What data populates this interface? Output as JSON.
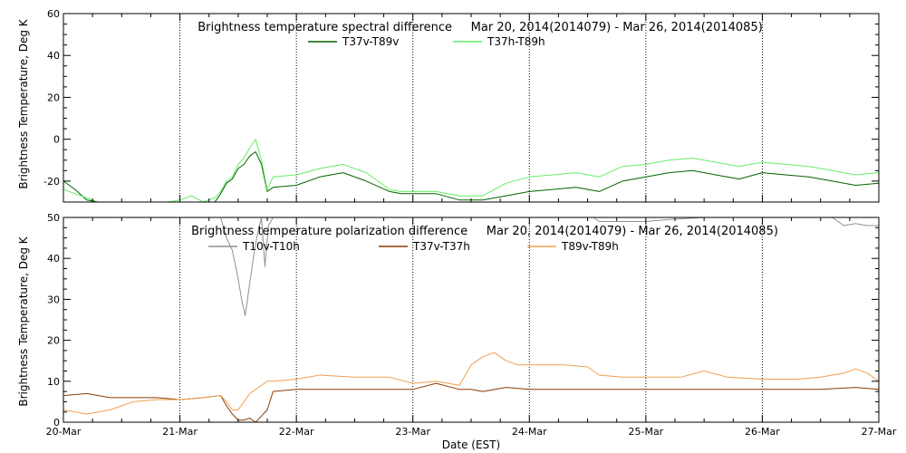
{
  "chart_data": [
    {
      "type": "line",
      "title": "Brightness temperature spectral difference     Mar 20, 2014(2014079) - Mar 26, 2014(2014085)",
      "ylabel": "Brightness Temperature, Deg K",
      "xlabel": "",
      "ylim": [
        -30,
        60
      ],
      "yticks": [
        -20,
        0,
        20,
        40,
        60
      ],
      "yticks_display": [
        "-20",
        "0",
        "20",
        "40",
        "60"
      ],
      "xlim": [
        0,
        7
      ],
      "xticks": [
        0,
        1,
        2,
        3,
        4,
        5,
        6,
        7
      ],
      "x_tick_labels": [
        "",
        "",
        "",
        "",
        "",
        "",
        "",
        ""
      ],
      "grid": "vertical dotted at each day",
      "legend": "top-center",
      "series": [
        {
          "name": "T37v-T89v",
          "color": "#006400",
          "x": [
            0,
            0.1,
            0.2,
            0.3,
            0.4,
            0.5,
            0.6,
            0.7,
            0.8,
            0.9,
            1.0,
            1.1,
            1.2,
            1.3,
            1.35,
            1.4,
            1.45,
            1.5,
            1.55,
            1.6,
            1.65,
            1.7,
            1.75,
            1.8,
            2.0,
            2.2,
            2.4,
            2.6,
            2.8,
            2.9,
            3.0,
            3.2,
            3.4,
            3.6,
            3.8,
            4.0,
            4.2,
            4.4,
            4.6,
            4.8,
            5.0,
            5.2,
            5.4,
            5.6,
            5.8,
            6.0,
            6.2,
            6.4,
            6.6,
            6.8,
            7.0
          ],
          "values": [
            -20,
            -24,
            -29,
            -30,
            -30,
            -30,
            -30,
            -30,
            -30,
            -30,
            -30,
            -30,
            -30,
            -30,
            -26,
            -21,
            -19,
            -14,
            -12,
            -8,
            -6,
            -12,
            -25,
            -23,
            -22,
            -18,
            -16,
            -20,
            -25,
            -26,
            -26,
            -26,
            -29,
            -29,
            -27,
            -25,
            -24,
            -23,
            -25,
            -20,
            -18,
            -16,
            -15,
            -17,
            -19,
            -16,
            -17,
            -18,
            -20,
            -22,
            -21
          ]
        },
        {
          "name": "T37h-T89h",
          "color": "#66ee66",
          "x": [
            0,
            0.1,
            0.2,
            0.3,
            0.4,
            0.5,
            0.6,
            0.7,
            0.8,
            0.9,
            1.0,
            1.1,
            1.2,
            1.3,
            1.35,
            1.4,
            1.45,
            1.5,
            1.55,
            1.6,
            1.65,
            1.7,
            1.75,
            1.8,
            2.0,
            2.2,
            2.4,
            2.6,
            2.8,
            2.9,
            3.0,
            3.2,
            3.4,
            3.6,
            3.8,
            4.0,
            4.2,
            4.4,
            4.6,
            4.8,
            5.0,
            5.2,
            5.4,
            5.6,
            5.8,
            6.0,
            6.2,
            6.4,
            6.6,
            6.8,
            7.0
          ],
          "values": [
            -24,
            -26,
            -28,
            -30,
            -30,
            -30,
            -30,
            -30,
            -30,
            -30,
            -29,
            -27,
            -30,
            -28,
            -25,
            -20,
            -18,
            -12,
            -9,
            -4,
            0,
            -10,
            -24,
            -18,
            -17,
            -14,
            -12,
            -16,
            -24,
            -25,
            -25,
            -25,
            -27,
            -27,
            -21,
            -18,
            -17,
            -16,
            -18,
            -13,
            -12,
            -10,
            -9,
            -11,
            -13,
            -11,
            -12,
            -13,
            -15,
            -17,
            -16
          ]
        }
      ]
    },
    {
      "type": "line",
      "title": "Brightness temperature polarization difference     Mar 20, 2014(2014079) - Mar 26, 2014(2014085)",
      "ylabel": "Brightness Temperature, Deg K",
      "xlabel": "Date (EST)",
      "ylim": [
        0,
        50
      ],
      "yticks": [
        0,
        10,
        20,
        30,
        40,
        50
      ],
      "yticks_display": [
        "0",
        "10",
        "20",
        "30",
        "40",
        "50"
      ],
      "xlim": [
        0,
        7
      ],
      "xticks": [
        0,
        1,
        2,
        3,
        4,
        5,
        6,
        7
      ],
      "x_tick_labels": [
        "20-Mar",
        "21-Mar",
        "22-Mar",
        "23-Mar",
        "24-Mar",
        "25-Mar",
        "26-Mar",
        "27-Mar"
      ],
      "grid": "vertical dotted at each day",
      "legend": "top-center",
      "series": [
        {
          "name": "T10v-T10h",
          "color": "#909090",
          "x": [
            1.35,
            1.4,
            1.45,
            1.5,
            1.53,
            1.56,
            1.6,
            1.63,
            1.66,
            1.7,
            1.73,
            1.76,
            1.8,
            4.55,
            4.6,
            4.8,
            5.0,
            5.2,
            5.5,
            5.8,
            6.0,
            6.3,
            6.6,
            6.7,
            6.8,
            6.9,
            7.0
          ],
          "values": [
            50,
            45,
            42,
            35,
            30,
            26,
            34,
            40,
            45,
            50,
            38,
            48,
            50,
            50,
            49,
            49,
            49,
            49.5,
            50,
            50,
            50,
            50,
            50,
            48,
            48.5,
            48,
            48
          ]
        },
        {
          "name": "T37v-T37h",
          "color": "#8b3a00",
          "x": [
            0,
            0.2,
            0.4,
            0.6,
            0.8,
            1.0,
            1.2,
            1.35,
            1.4,
            1.45,
            1.5,
            1.55,
            1.6,
            1.65,
            1.7,
            1.75,
            1.8,
            2.0,
            2.5,
            3.0,
            3.2,
            3.4,
            3.5,
            3.6,
            3.8,
            4.0,
            4.5,
            5.0,
            5.5,
            6.0,
            6.5,
            6.8,
            7.0
          ],
          "values": [
            6.5,
            7,
            6,
            6,
            6,
            5.5,
            6,
            6.5,
            4,
            2,
            0.5,
            0.5,
            1,
            0,
            1.5,
            3,
            7.5,
            8,
            8,
            8,
            9.5,
            8,
            8,
            7.5,
            8.5,
            8,
            8,
            8,
            8,
            8,
            8,
            8.5,
            8
          ]
        },
        {
          "name": "T89v-T89h",
          "color": "#f0a050",
          "x": [
            0,
            0.2,
            0.4,
            0.6,
            0.8,
            1.0,
            1.2,
            1.35,
            1.4,
            1.45,
            1.5,
            1.55,
            1.6,
            1.7,
            1.75,
            1.8,
            2.0,
            2.2,
            2.5,
            2.8,
            3.0,
            3.2,
            3.4,
            3.5,
            3.6,
            3.7,
            3.8,
            3.9,
            4.0,
            4.3,
            4.5,
            4.6,
            4.8,
            5.0,
            5.3,
            5.5,
            5.7,
            6.0,
            6.3,
            6.5,
            6.7,
            6.8,
            6.9,
            7.0
          ],
          "values": [
            3,
            2,
            3,
            5,
            5.5,
            5.5,
            6,
            6.5,
            5,
            3,
            3,
            5,
            7,
            9,
            10,
            10,
            10.5,
            11.5,
            11,
            11,
            9.5,
            10,
            9,
            14,
            16,
            17,
            15,
            14,
            14,
            14,
            13.5,
            11.5,
            11,
            11,
            11,
            12.5,
            11,
            10.5,
            10.5,
            11,
            12,
            13,
            12,
            10
          ]
        }
      ]
    }
  ]
}
